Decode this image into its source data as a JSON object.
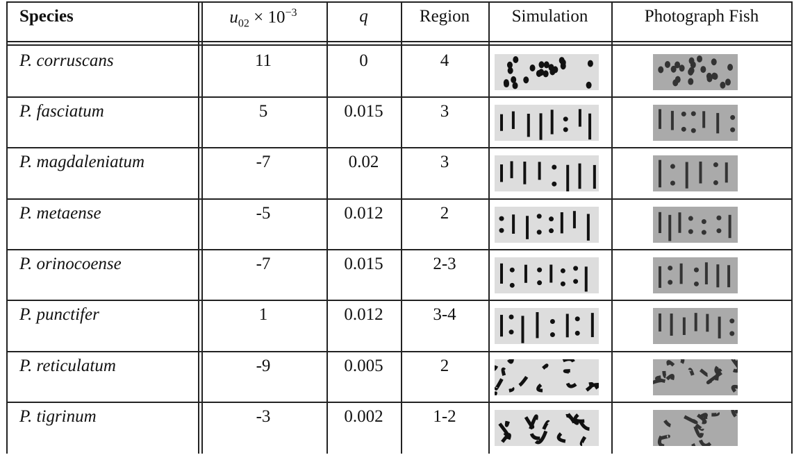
{
  "table": {
    "columns": [
      "Species",
      {
        "base": "u",
        "sub": "02",
        "mid": " × 10",
        "sup": "−3"
      },
      "q",
      "Region",
      "Simulation",
      "Photograph Fish"
    ],
    "rows": [
      [
        "P. corruscans",
        11,
        0,
        4
      ],
      [
        "P. fasciatum",
        5,
        0.015,
        3
      ],
      [
        "P. magdaleniatum",
        -7,
        0.02,
        3
      ],
      [
        "P. metaense",
        -5,
        0.012,
        2
      ],
      [
        "P. orinocoense",
        -7,
        0.015,
        "2-3"
      ],
      [
        "P. punctifer",
        1,
        0.012,
        "3-4"
      ],
      [
        "P. reticulatum",
        -9,
        0.005,
        2
      ],
      [
        "P. tigrinum",
        -3,
        0.002,
        "1-2"
      ]
    ]
  }
}
